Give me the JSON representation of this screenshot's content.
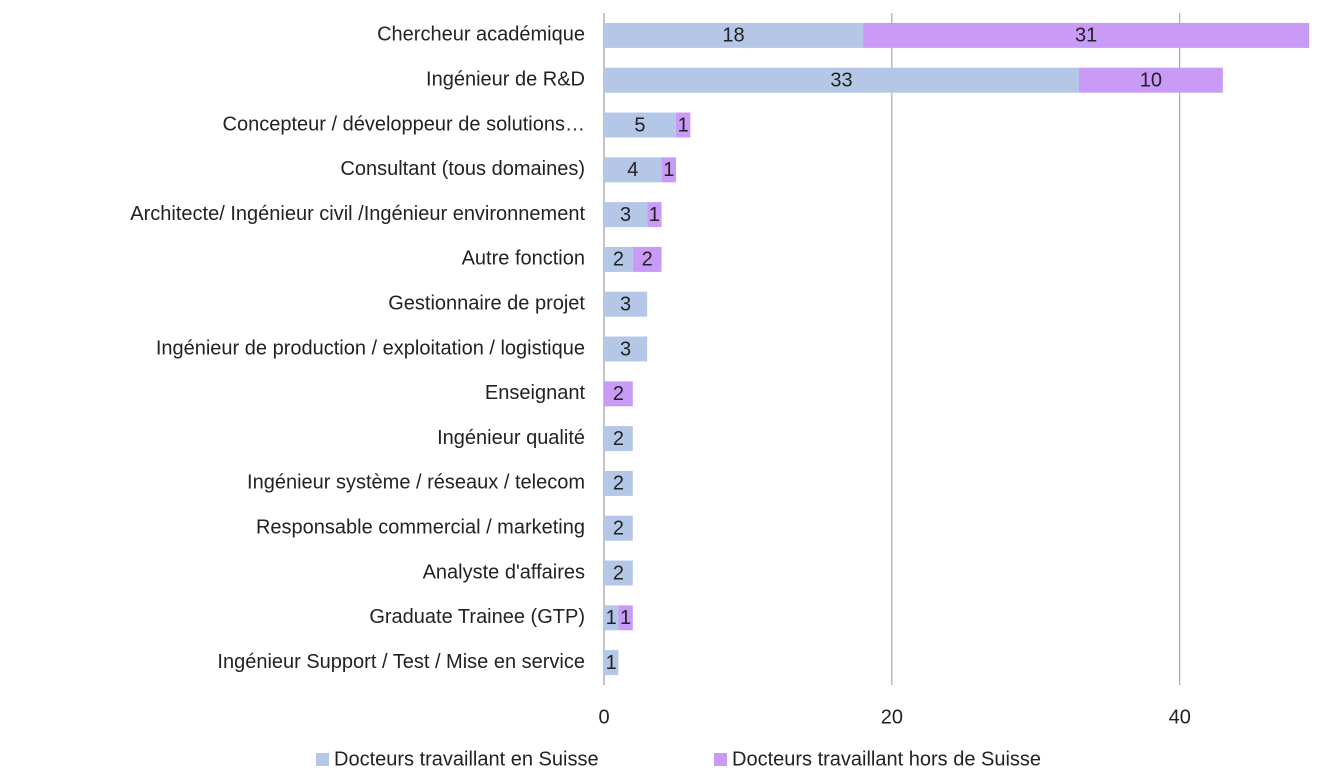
{
  "chart_data": {
    "type": "bar",
    "orientation": "horizontal",
    "stacked": true,
    "categories": [
      "Chercheur académique",
      "Ingénieur de R&D",
      "Concepteur / développeur de solutions…",
      "Consultant (tous domaines)",
      "Architecte/ Ingénieur civil /Ingénieur environnement",
      "Autre fonction",
      "Gestionnaire de projet",
      "Ingénieur de production / exploitation / logistique",
      "Enseignant",
      "Ingénieur qualité",
      "Ingénieur système / réseaux / telecom",
      "Responsable commercial / marketing",
      "Analyste d'affaires",
      "Graduate Trainee (GTP)",
      "Ingénieur Support / Test / Mise en service"
    ],
    "series": [
      {
        "name": "Docteurs travaillant en Suisse",
        "color": "#b4c7e7",
        "values": [
          18,
          33,
          5,
          4,
          3,
          2,
          3,
          3,
          null,
          2,
          2,
          2,
          2,
          1,
          1
        ]
      },
      {
        "name": "Docteurs travaillant hors de Suisse",
        "color": "#c99bf7",
        "values": [
          31,
          10,
          1,
          1,
          1,
          2,
          null,
          null,
          2,
          null,
          null,
          null,
          null,
          1,
          null
        ]
      }
    ],
    "xlim": [
      0,
      49.4
    ],
    "xticks": [
      0,
      20,
      40
    ],
    "grid": true,
    "legend": "bottom"
  }
}
